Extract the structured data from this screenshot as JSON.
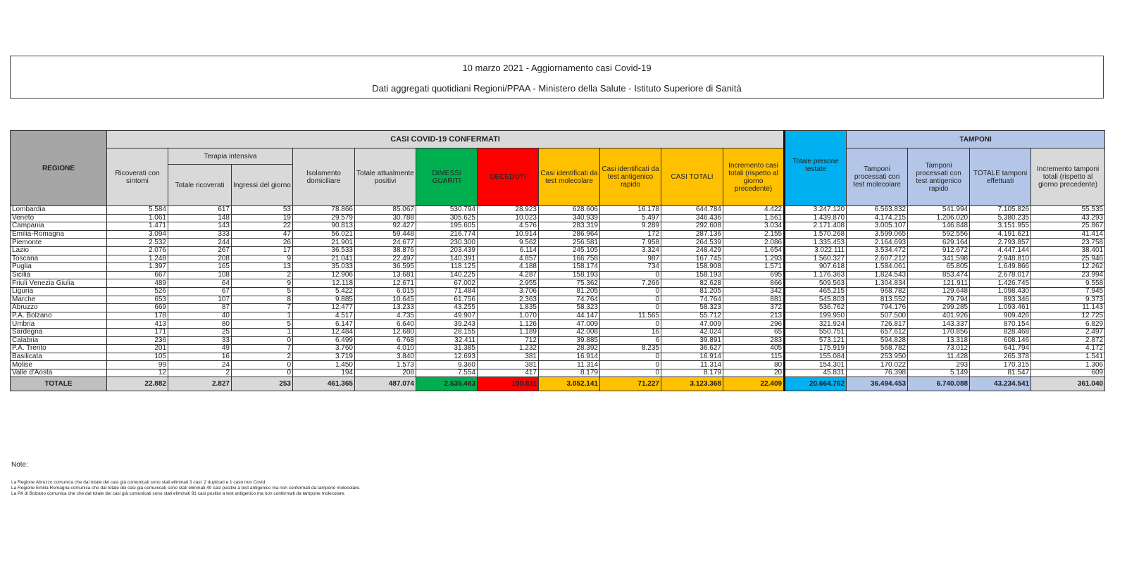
{
  "header": {
    "title": "10 marzo 2021 - Aggiornamento casi Covid-19",
    "subtitle": "Dati aggregati quotidiani Regioni/PPAA - Ministero della Salute - Istituto Superiore di Sanità"
  },
  "table": {
    "headers": {
      "regione": "REGIONE",
      "casi_group": "CASI COVID-19 CONFERMATI",
      "tamponi_group": "TAMPONI",
      "terapia_group": "Terapia intensiva",
      "ricoverati": "Ricoverati con sintomi",
      "ti_totale": "Totale ricoverati",
      "ti_ingressi": "Ingressi del giorno",
      "isolamento": "Isolamento domiciliare",
      "attualmente_positivi": "Totale attualmente positivi",
      "dimessi": "DIMESSI GUARITI",
      "deceduti": "DECEDUTI",
      "casi_molecolare": "Casi identificati da test molecolare",
      "casi_antigenico": "Casi identificati da test antigenico rapido",
      "casi_totali": "CASI TOTALI",
      "incremento_casi": "Incremento casi totali (rispetto al giorno precedente)",
      "persone_testate": "Totale persone testate",
      "tamponi_molecolare": "Tamponi processati con test molecolare",
      "tamponi_antigenico": "Tamponi processati con test antigenico rapido",
      "tamponi_totale": "TOTALE tamponi effettuati",
      "incremento_tamponi": "Incremento tamponi totali (rispetto al giorno precedente)"
    },
    "rows": [
      [
        "Lombardia",
        "5.584",
        "617",
        "53",
        "78.866",
        "85.067",
        "530.794",
        "28.923",
        "628.606",
        "16.178",
        "644.784",
        "4.422",
        "3.247.120",
        "6.563.832",
        "541.994",
        "7.105.826",
        "55.535"
      ],
      [
        "Veneto",
        "1.061",
        "148",
        "19",
        "29.579",
        "30.788",
        "305.625",
        "10.023",
        "340.939",
        "5.497",
        "346.436",
        "1.561",
        "1.439.870",
        "4.174.215",
        "1.206.020",
        "5.380.235",
        "43.293"
      ],
      [
        "Campania",
        "1.471",
        "143",
        "22",
        "90.813",
        "92.427",
        "195.605",
        "4.576",
        "283.319",
        "9.289",
        "292.608",
        "3.034",
        "2.171.408",
        "3.005.107",
        "146.848",
        "3.151.955",
        "25.867"
      ],
      [
        "Emilia-Romagna",
        "3.094",
        "333",
        "47",
        "56.021",
        "59.448",
        "216.774",
        "10.914",
        "286.964",
        "172",
        "287.136",
        "2.155",
        "1.570.268",
        "3.599.065",
        "592.556",
        "4.191.621",
        "41.414"
      ],
      [
        "Piemonte",
        "2.532",
        "244",
        "26",
        "21.901",
        "24.677",
        "230.300",
        "9.562",
        "256.581",
        "7.958",
        "264.539",
        "2.086",
        "1.335.453",
        "2.164.693",
        "629.164",
        "2.793.857",
        "23.758"
      ],
      [
        "Lazio",
        "2.076",
        "267",
        "17",
        "36.533",
        "38.876",
        "203.439",
        "6.114",
        "245.105",
        "3.324",
        "248.429",
        "1.654",
        "3.022.111",
        "3.534.472",
        "912.672",
        "4.447.144",
        "38.401"
      ],
      [
        "Toscana",
        "1.248",
        "208",
        "9",
        "21.041",
        "22.497",
        "140.391",
        "4.857",
        "166.758",
        "987",
        "167.745",
        "1.293",
        "1.560.327",
        "2.607.212",
        "341.598",
        "2.948.810",
        "25.946"
      ],
      [
        "Puglia",
        "1.397",
        "165",
        "13",
        "35.033",
        "36.595",
        "118.125",
        "4.188",
        "158.174",
        "734",
        "158.908",
        "1.571",
        "907.618",
        "1.584.061",
        "65.805",
        "1.649.866",
        "12.262"
      ],
      [
        "Sicilia",
        "667",
        "108",
        "2",
        "12.906",
        "13.681",
        "140.225",
        "4.287",
        "158.193",
        "0",
        "158.193",
        "695",
        "1.176.363",
        "1.824.543",
        "853.474",
        "2.678.017",
        "23.994"
      ],
      [
        "Friuli Venezia Giulia",
        "489",
        "64",
        "9",
        "12.118",
        "12.671",
        "67.002",
        "2.955",
        "75.362",
        "7.266",
        "82.628",
        "866",
        "509.563",
        "1.304.834",
        "121.911",
        "1.426.745",
        "9.558"
      ],
      [
        "Liguria",
        "526",
        "67",
        "5",
        "5.422",
        "6.015",
        "71.484",
        "3.706",
        "81.205",
        "0",
        "81.205",
        "342",
        "465.215",
        "968.782",
        "129.648",
        "1.098.430",
        "7.945"
      ],
      [
        "Marche",
        "653",
        "107",
        "8",
        "9.885",
        "10.645",
        "61.756",
        "2.363",
        "74.764",
        "0",
        "74.764",
        "881",
        "545.803",
        "813.552",
        "79.794",
        "893.346",
        "9.373"
      ],
      [
        "Abruzzo",
        "669",
        "87",
        "7",
        "12.477",
        "13.233",
        "43.255",
        "1.835",
        "58.323",
        "0",
        "58.323",
        "372",
        "536.762",
        "794.176",
        "299.285",
        "1.093.461",
        "11.143"
      ],
      [
        "P.A. Bolzano",
        "178",
        "40",
        "1",
        "4.517",
        "4.735",
        "49.907",
        "1.070",
        "44.147",
        "11.565",
        "55.712",
        "213",
        "199.950",
        "507.500",
        "401.926",
        "909.426",
        "12.725"
      ],
      [
        "Umbria",
        "413",
        "80",
        "5",
        "6.147",
        "6.640",
        "39.243",
        "1.126",
        "47.009",
        "0",
        "47.009",
        "296",
        "321.924",
        "726.817",
        "143.337",
        "870.154",
        "6.829"
      ],
      [
        "Sardegna",
        "171",
        "25",
        "1",
        "12.484",
        "12.680",
        "28.155",
        "1.189",
        "42.008",
        "16",
        "42.024",
        "65",
        "550.751",
        "657.612",
        "170.856",
        "828.468",
        "2.497"
      ],
      [
        "Calabria",
        "236",
        "33",
        "0",
        "6.499",
        "6.768",
        "32.411",
        "712",
        "39.885",
        "6",
        "39.891",
        "283",
        "573.121",
        "594.828",
        "13.318",
        "608.146",
        "2.872"
      ],
      [
        "P.A. Trento",
        "201",
        "49",
        "7",
        "3.760",
        "4.010",
        "31.385",
        "1.232",
        "28.392",
        "8.235",
        "36.627",
        "405",
        "175.919",
        "568.782",
        "73.012",
        "641.794",
        "4.172"
      ],
      [
        "Basilicata",
        "105",
        "16",
        "2",
        "3.719",
        "3.840",
        "12.693",
        "381",
        "16.914",
        "0",
        "16.914",
        "115",
        "155.084",
        "253.950",
        "11.428",
        "265.378",
        "1.541"
      ],
      [
        "Molise",
        "99",
        "24",
        "0",
        "1.450",
        "1.573",
        "9.360",
        "381",
        "11.314",
        "0",
        "11.314",
        "80",
        "154.301",
        "170.022",
        "293",
        "170.315",
        "1.306"
      ],
      [
        "Valle d'Aosta",
        "12",
        "2",
        "0",
        "194",
        "208",
        "7.554",
        "417",
        "8.179",
        "0",
        "8.179",
        "20",
        "45.831",
        "76.398",
        "5.149",
        "81.547",
        "609"
      ]
    ],
    "totals": [
      "TOTALE",
      "22.882",
      "2.827",
      "253",
      "461.365",
      "487.074",
      "2.535.483",
      "100.811",
      "3.052.141",
      "71.227",
      "3.123.368",
      "22.409",
      "20.664.762",
      "36.494.453",
      "6.740.088",
      "43.234.541",
      "361.040"
    ]
  },
  "notes": {
    "heading": "Note:",
    "lines": [
      "La Regione Abruzzo comunica che dal totale dei casi già comunicati sono stati eliminati 3 casi: 2 duplicati  e 1 caso non Covid.",
      "La Regione Emilia Romagna comunica che dal totale dei casi già comunicati sono stati eliminati 40 casi  positivi a test antigenico ma non confermati da tampone molecolare.",
      "La PA di Bolzano comunica che che dal totale dei casi già comunicati sono stati eliminati 91 casi positivi a test antigenico ma non confermati da tampone molecolare."
    ]
  },
  "colors": {
    "header_gray": "#d9d9d9",
    "regione_gray": "#a6a6a6",
    "dimessi_green": "#00b050",
    "deceduti_red": "#ff0000",
    "casi_orange": "#ffc000",
    "testate_blue": "#00b0f0",
    "tamponi_blue": "#b4c6e7"
  }
}
